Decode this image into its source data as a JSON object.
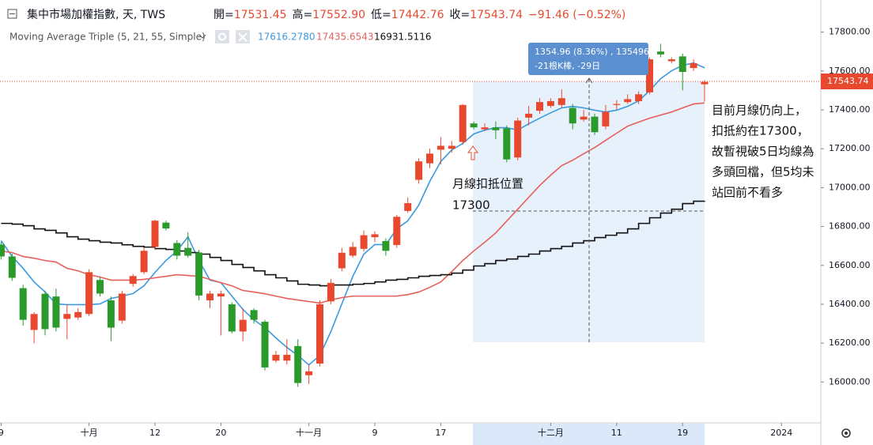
{
  "chart_data": {
    "type": "candlestick",
    "title": "集中市場加權指數, 天, TWS",
    "quote": [
      {
        "label": "開=",
        "value": "17531.45"
      },
      {
        "label": "高=",
        "value": "17552.90"
      },
      {
        "label": "低=",
        "value": "17442.76"
      },
      {
        "label": "收=",
        "value": "17543.74"
      }
    ],
    "change": "−91.46 (−0.52%)",
    "last_price": "17543.74",
    "indicator": {
      "name": "Moving Average Triple (5, 21, 55, Simple)",
      "values": [
        "17616.2780",
        "17435.6543",
        "16931.5116"
      ]
    },
    "up_color": "#e8492e",
    "down_color": "#2a9a2a",
    "categories": [
      "9",
      null,
      null,
      null,
      null,
      null,
      null,
      null,
      "十月",
      null,
      null,
      null,
      null,
      null,
      "12",
      null,
      null,
      null,
      null,
      null,
      "20",
      null,
      null,
      null,
      null,
      null,
      null,
      null,
      "十一月",
      null,
      null,
      null,
      null,
      null,
      "9",
      null,
      null,
      null,
      null,
      null,
      "17",
      null,
      null,
      null,
      null,
      null,
      null,
      null,
      null,
      null,
      "十二月",
      null,
      null,
      null,
      null,
      null,
      "11",
      null,
      null,
      null,
      null,
      null,
      "19",
      null,
      null,
      null,
      null,
      null,
      null,
      null,
      null,
      "2024"
    ],
    "open": [
      16707,
      16646,
      16483,
      16268,
      16454,
      16440,
      16325,
      16332,
      16350,
      16525,
      16420,
      16316,
      16505,
      16565,
      16695,
      16820,
      16715,
      16690,
      16666,
      16420,
      16440,
      16400,
      16260,
      16370,
      16310,
      16110,
      16110,
      16185,
      16035,
      16095,
      16415,
      16585,
      16650,
      16685,
      16745,
      16725,
      16705,
      16880,
      17040,
      17125,
      17195,
      17200,
      17235,
      17330,
      17300,
      17310,
      17305,
      17155,
      17360,
      17395,
      17420,
      17425,
      17410,
      17350,
      17365,
      17315,
      17425,
      17440,
      17445,
      17490,
      17700,
      17650,
      17675,
      17615,
      17531.45,
      null,
      null,
      null,
      null,
      null,
      null,
      null
    ],
    "high": [
      16720,
      16660,
      16500,
      16360,
      16470,
      16480,
      16400,
      16380,
      16580,
      16540,
      16440,
      16470,
      16555,
      16690,
      16835,
      16830,
      16730,
      16770,
      16680,
      16470,
      16470,
      16410,
      16380,
      16380,
      16320,
      16160,
      16220,
      16220,
      16090,
      16420,
      16530,
      16690,
      16720,
      16780,
      16775,
      16740,
      16860,
      16950,
      17150,
      17200,
      17260,
      17240,
      17430,
      17340,
      17330,
      17340,
      17320,
      17360,
      17420,
      17460,
      17460,
      17505,
      17430,
      17400,
      17380,
      17425,
      17450,
      17480,
      17495,
      17670,
      17740,
      17670,
      17690,
      17660,
      17552.9,
      null,
      null,
      null,
      null,
      null,
      null,
      null
    ],
    "low": [
      16630,
      16520,
      16290,
      16200,
      16240,
      16260,
      16220,
      16320,
      16340,
      16440,
      16210,
      16300,
      16490,
      16555,
      16680,
      16780,
      16630,
      16640,
      16420,
      16380,
      16240,
      16250,
      16210,
      16300,
      16060,
      16100,
      16090,
      15975,
      15990,
      16080,
      16400,
      16570,
      16640,
      16670,
      16720,
      16650,
      16690,
      16870,
      17020,
      17100,
      17120,
      17180,
      17220,
      17300,
      17290,
      17250,
      17130,
      17140,
      17320,
      17380,
      17410,
      17410,
      17300,
      17340,
      17270,
      17300,
      17400,
      17430,
      17430,
      17480,
      17670,
      17640,
      17500,
      17600,
      17442.76,
      null,
      null,
      null,
      null,
      null,
      null,
      null
    ],
    "close": [
      16646,
      16536,
      16320,
      16350,
      16272,
      16280,
      16350,
      16360,
      16565,
      16455,
      16280,
      16455,
      16545,
      16675,
      16830,
      16790,
      16650,
      16650,
      16445,
      16455,
      16455,
      16260,
      16320,
      16320,
      16075,
      16140,
      16140,
      15995,
      16055,
      16400,
      16510,
      16665,
      16695,
      16755,
      16760,
      16675,
      16850,
      16920,
      17135,
      17175,
      17215,
      17215,
      17425,
      17310,
      17310,
      17295,
      17145,
      17345,
      17380,
      17440,
      17445,
      17460,
      17330,
      17365,
      17285,
      17390,
      17430,
      17455,
      17480,
      17660,
      17685,
      17660,
      17595,
      17640,
      17543.74,
      null,
      null,
      null,
      null,
      null,
      null,
      null
    ],
    "series": [
      {
        "color": "#3a9ae0",
        "values": [
          16727,
          16646,
          16585,
          16515,
          16463,
          16402,
          16398,
          16398,
          16398,
          16402,
          16430,
          16442,
          16455,
          16495,
          16564,
          16625,
          16674,
          16747,
          16625,
          16524,
          16511,
          16442,
          16373,
          16320,
          16280,
          16227,
          16178,
          16137,
          16088,
          16137,
          16259,
          16402,
          16544,
          16658,
          16707,
          16707,
          16788,
          16829,
          16910,
          17032,
          17134,
          17194,
          17227,
          17276,
          17296,
          17308,
          17308,
          17296,
          17328,
          17357,
          17385,
          17410,
          17418,
          17410,
          17398,
          17389,
          17398,
          17418,
          17446,
          17499,
          17560,
          17601,
          17629,
          17641,
          17616.28,
          null,
          null,
          null,
          null,
          null,
          null,
          null
        ]
      },
      {
        "color": "#e8605a",
        "values": [
          16674,
          16666,
          16646,
          16637,
          16625,
          16617,
          16585,
          16572,
          16552,
          16540,
          16524,
          16524,
          16524,
          16528,
          16536,
          16544,
          16552,
          16548,
          16544,
          16528,
          16511,
          16495,
          16471,
          16463,
          16454,
          16442,
          16430,
          16422,
          16414,
          16406,
          16422,
          16434,
          16442,
          16442,
          16442,
          16442,
          16442,
          16450,
          16463,
          16487,
          16515,
          16568,
          16625,
          16674,
          16719,
          16767,
          16828,
          16889,
          16950,
          17011,
          17064,
          17113,
          17141,
          17174,
          17206,
          17243,
          17280,
          17316,
          17337,
          17357,
          17373,
          17389,
          17410,
          17430,
          17435.65,
          null,
          null,
          null,
          null,
          null,
          null,
          null
        ]
      },
      {
        "color": "#111111",
        "step": true,
        "values": [
          16816,
          16812,
          16804,
          16788,
          16780,
          16767,
          16747,
          16735,
          16727,
          16719,
          16715,
          16706,
          16698,
          16694,
          16686,
          16682,
          16674,
          16666,
          16658,
          16641,
          16625,
          16605,
          16589,
          16572,
          16552,
          16536,
          16520,
          16503,
          16499,
          16495,
          16499,
          16499,
          16503,
          16507,
          16515,
          16524,
          16528,
          16536,
          16544,
          16548,
          16552,
          16560,
          16576,
          16597,
          16609,
          16625,
          16633,
          16646,
          16658,
          16674,
          16686,
          16698,
          16715,
          16727,
          16743,
          16755,
          16767,
          16788,
          16816,
          16845,
          16869,
          16889,
          16918,
          16930,
          16931.51,
          null,
          null,
          null,
          null,
          null,
          null,
          null
        ]
      }
    ],
    "ylim": [
      15790,
      17965
    ],
    "yticks": [
      {
        "value": 16000,
        "label": "16000.00"
      },
      {
        "value": 16200,
        "label": "16200.00"
      },
      {
        "value": 16400,
        "label": "16400.00"
      },
      {
        "value": 16600,
        "label": "16600.00"
      },
      {
        "value": 16800,
        "label": "16800.00"
      },
      {
        "value": 17000,
        "label": "17000.00"
      },
      {
        "value": 17200,
        "label": "17200.00"
      },
      {
        "value": 17400,
        "label": "17400.00"
      },
      {
        "value": 17600,
        "label": "17600.00"
      },
      {
        "value": 17800,
        "label": "17800.00"
      }
    ],
    "annotations": {
      "measure": [
        "1354.96 (8.36%) , 135496",
        "-21根K棒, -29日"
      ],
      "left_note": [
        "月線扣抵位置",
        "17300"
      ],
      "right_note": [
        "目前月線仍向上，",
        "扣抵約在17300，",
        "故暫視破5日均線為",
        "多頭回檔，但5均未",
        "站回前不看多"
      ]
    }
  }
}
